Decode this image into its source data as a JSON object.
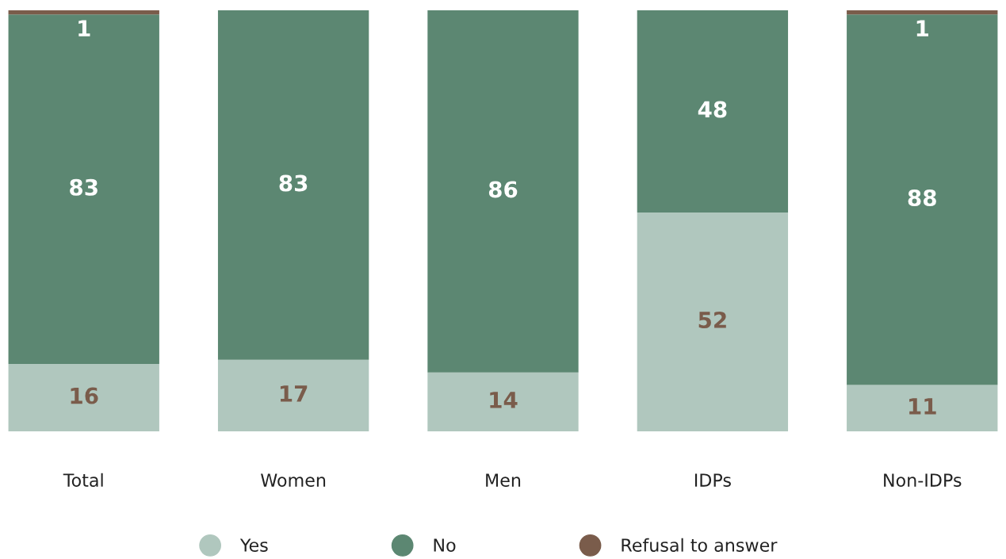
{
  "chart_data": {
    "type": "bar",
    "stacked": true,
    "categories": [
      "Total",
      "Women",
      "Men",
      "IDPs",
      "Non-IDPs"
    ],
    "series": [
      {
        "name": "Yes",
        "color": "#b0c7be",
        "values": [
          16,
          17,
          14,
          52,
          11
        ]
      },
      {
        "name": "No",
        "color": "#5c8772",
        "values": [
          83,
          83,
          86,
          48,
          88
        ]
      },
      {
        "name": "Refusal to answer",
        "color": "#7a5c4b",
        "values": [
          1,
          null,
          null,
          null,
          1
        ]
      }
    ],
    "ylim": [
      0,
      100
    ],
    "tick_labels": "x",
    "data_labels": true,
    "legend": "bottom"
  }
}
